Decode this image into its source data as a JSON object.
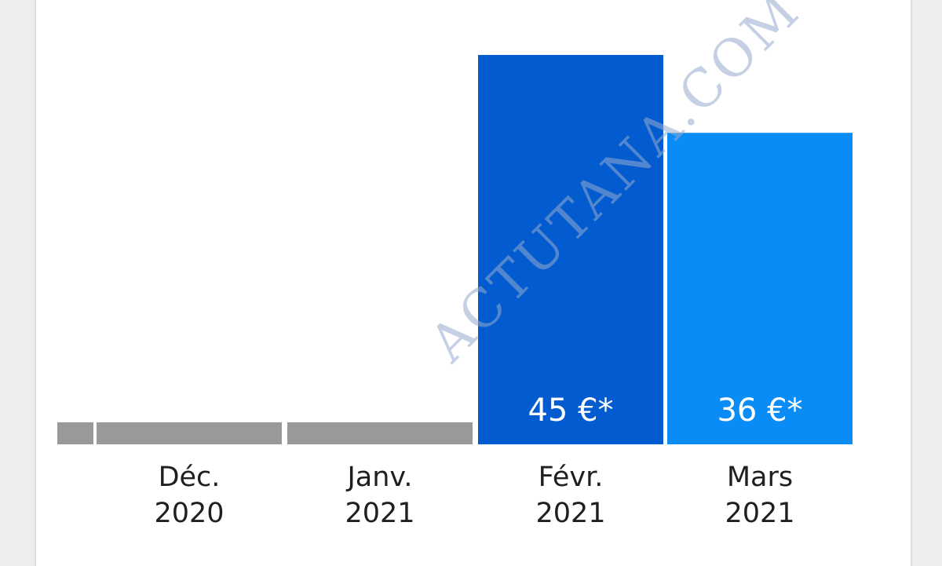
{
  "chart_data": {
    "type": "bar",
    "categories": [
      [
        "Déc.",
        "2020"
      ],
      [
        "Janv.",
        "2021"
      ],
      [
        "Févr.",
        "2021"
      ],
      [
        "Mars",
        "2021"
      ]
    ],
    "values": [
      0,
      0,
      45,
      36
    ],
    "data_labels": [
      "",
      "",
      "45 €*",
      "36 €*"
    ],
    "bar_colors": [
      "#999999",
      "#999999",
      "#025ccf",
      "#0a8cf7"
    ],
    "ylim": [
      0,
      45
    ],
    "grid": false,
    "legend": "none"
  },
  "watermark": "ACTUTANA.COM",
  "colors": {
    "zero_bar": "#999999",
    "label_text": "#1f1f1f",
    "value_label_text": "#ffffff"
  }
}
